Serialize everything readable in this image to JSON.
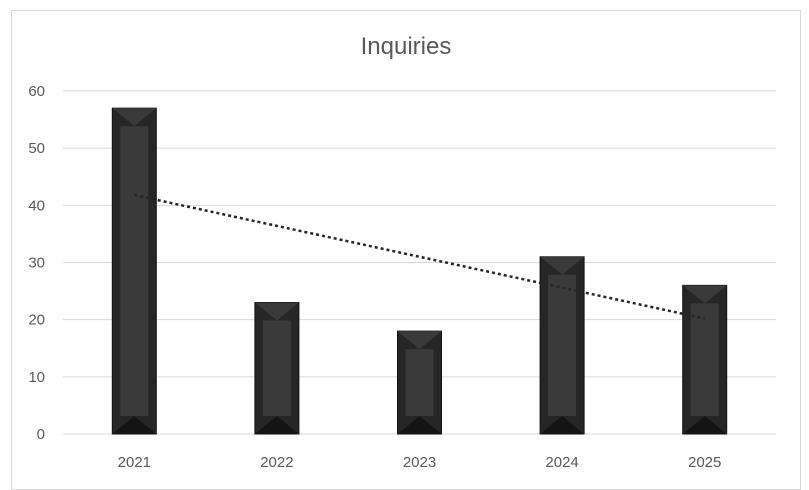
{
  "chart_data": {
    "type": "bar",
    "title": "Inquiries",
    "categories": [
      "2021",
      "2022",
      "2023",
      "2024",
      "2025"
    ],
    "values": [
      57,
      23,
      18,
      31,
      26
    ],
    "ylim": [
      0,
      60
    ],
    "yticks": [
      0,
      10,
      20,
      30,
      40,
      50,
      60
    ],
    "xlabel": "",
    "ylabel": "",
    "grid": true,
    "legend": "none",
    "trendline": {
      "type": "linear",
      "style": "dotted"
    },
    "colors": {
      "bar": "#262626",
      "bar_highlight": "#3a3a3a",
      "bar_shadow": "#141414",
      "trendline": "#262626",
      "grid": "#d9d9d9",
      "text": "#595959"
    }
  }
}
